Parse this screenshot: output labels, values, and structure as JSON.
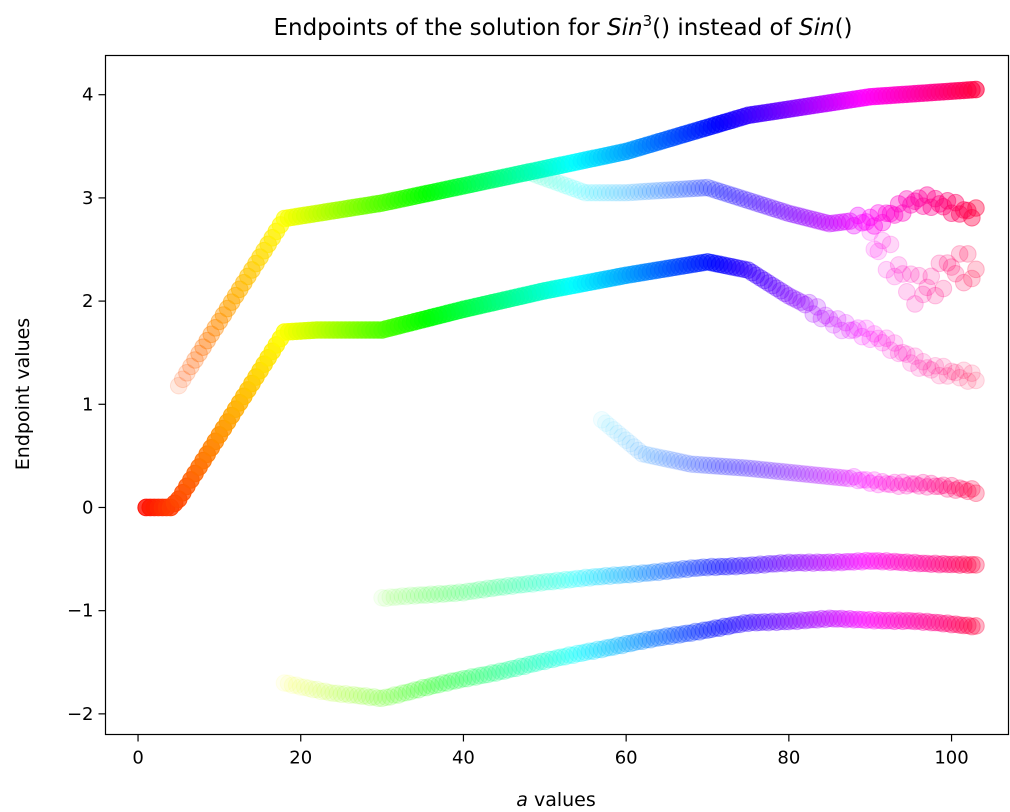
{
  "chart_data": {
    "type": "scatter",
    "title": {
      "prefix": "Endpoints of the solution for ",
      "func1": "Sin",
      "exponent": "3",
      "parens1": "()",
      "middle": " instead of ",
      "func2": "Sin",
      "parens2": "()"
    },
    "xlabel": {
      "variable": "a",
      "rest": " values"
    },
    "ylabel": "Endpoint values",
    "xlim": [
      -4,
      107
    ],
    "ylim": [
      -2.2,
      4.38
    ],
    "x_ticks": [
      0,
      20,
      40,
      60,
      80,
      100
    ],
    "y_ticks": [
      -2,
      -1,
      0,
      1,
      2,
      3,
      4
    ],
    "grid": false,
    "legend": "none",
    "x_step": 0.5,
    "series": [
      {
        "x_range": [
          5,
          103
        ],
        "anchors": [
          [
            5,
            1.18
          ],
          [
            18,
            2.8
          ],
          [
            30,
            2.95
          ],
          [
            45,
            3.2
          ],
          [
            60,
            3.45
          ],
          [
            75,
            3.8
          ],
          [
            90,
            3.98
          ],
          [
            103,
            4.05
          ]
        ],
        "jitter": 0.0,
        "opacity": [
          [
            5,
            0.12
          ],
          [
            8,
            0.3
          ],
          [
            12,
            0.5
          ],
          [
            17,
            0.6
          ],
          [
            103,
            0.6
          ]
        ]
      },
      {
        "x_range": [
          1,
          103
        ],
        "anchors": [
          [
            1,
            0
          ],
          [
            4,
            0
          ],
          [
            5,
            0.08
          ],
          [
            18,
            1.7
          ],
          [
            22,
            1.72
          ],
          [
            30,
            1.72
          ],
          [
            40,
            1.92
          ],
          [
            50,
            2.1
          ],
          [
            60,
            2.25
          ],
          [
            70,
            2.38
          ],
          [
            75,
            2.3
          ],
          [
            80,
            2.05
          ],
          [
            85,
            1.85
          ],
          [
            90,
            1.65
          ],
          [
            95,
            1.45
          ],
          [
            103,
            1.22
          ]
        ],
        "jitter": 0.05,
        "jitter_from": 82,
        "opacity": [
          [
            1,
            0.8
          ],
          [
            17,
            0.75
          ],
          [
            60,
            0.6
          ],
          [
            70,
            0.5
          ],
          [
            78,
            0.3
          ],
          [
            85,
            0.18
          ],
          [
            103,
            0.12
          ]
        ]
      },
      {
        "x_range": [
          48,
          103
        ],
        "anchors": [
          [
            48,
            3.25
          ],
          [
            55,
            3.05
          ],
          [
            60,
            3.05
          ],
          [
            70,
            3.1
          ],
          [
            80,
            2.85
          ],
          [
            85,
            2.75
          ],
          [
            90,
            2.8
          ],
          [
            95,
            2.95
          ],
          [
            103,
            2.88
          ]
        ],
        "jitter": 0.06,
        "jitter_from": 88,
        "opacity": [
          [
            48,
            0.08
          ],
          [
            60,
            0.1
          ],
          [
            75,
            0.2
          ],
          [
            85,
            0.3
          ],
          [
            95,
            0.35
          ],
          [
            103,
            0.4
          ]
        ]
      },
      {
        "x_range": [
          90,
          103
        ],
        "anchors": [
          [
            90,
            2.5
          ],
          [
            95,
            2.15
          ],
          [
            100,
            2.35
          ],
          [
            103,
            2.2
          ]
        ],
        "jitter": 0.15,
        "opacity": [
          [
            90,
            0.15
          ],
          [
            103,
            0.2
          ]
        ]
      },
      {
        "x_range": [
          57,
          103
        ],
        "anchors": [
          [
            57,
            0.85
          ],
          [
            62,
            0.52
          ],
          [
            68,
            0.42
          ],
          [
            75,
            0.38
          ],
          [
            85,
            0.3
          ],
          [
            95,
            0.22
          ],
          [
            103,
            0.17
          ]
        ],
        "jitter": 0.02,
        "jitter_from": 88,
        "opacity": [
          [
            57,
            0.05
          ],
          [
            65,
            0.1
          ],
          [
            80,
            0.15
          ],
          [
            95,
            0.2
          ],
          [
            103,
            0.25
          ]
        ]
      },
      {
        "x_range": [
          30,
          103
        ],
        "anchors": [
          [
            30,
            -0.88
          ],
          [
            40,
            -0.82
          ],
          [
            50,
            -0.72
          ],
          [
            60,
            -0.65
          ],
          [
            70,
            -0.58
          ],
          [
            80,
            -0.54
          ],
          [
            90,
            -0.52
          ],
          [
            103,
            -0.56
          ]
        ],
        "jitter": 0.005,
        "opacity": [
          [
            30,
            0.05
          ],
          [
            45,
            0.12
          ],
          [
            60,
            0.18
          ],
          [
            80,
            0.25
          ],
          [
            103,
            0.3
          ]
        ]
      },
      {
        "x_range": [
          18,
          103
        ],
        "anchors": [
          [
            18,
            -1.7
          ],
          [
            24,
            -1.8
          ],
          [
            30,
            -1.85
          ],
          [
            35,
            -1.75
          ],
          [
            45,
            -1.58
          ],
          [
            55,
            -1.4
          ],
          [
            65,
            -1.25
          ],
          [
            75,
            -1.12
          ],
          [
            85,
            -1.08
          ],
          [
            95,
            -1.1
          ],
          [
            103,
            -1.15
          ]
        ],
        "jitter": 0.005,
        "opacity": [
          [
            18,
            0.06
          ],
          [
            30,
            0.12
          ],
          [
            50,
            0.2
          ],
          [
            70,
            0.25
          ],
          [
            103,
            0.3
          ]
        ]
      }
    ]
  }
}
